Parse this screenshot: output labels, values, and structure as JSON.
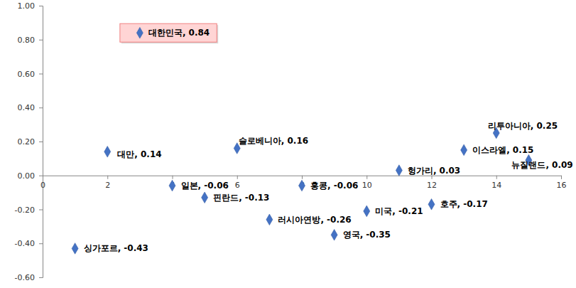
{
  "chart_data": {
    "type": "scatter",
    "x": [
      1,
      2,
      3,
      4,
      5,
      6,
      7,
      8,
      9,
      10,
      11,
      12,
      13,
      14,
      15
    ],
    "values": [
      -0.43,
      0.14,
      0.84,
      -0.06,
      -0.13,
      0.16,
      -0.26,
      -0.06,
      -0.35,
      -0.21,
      0.03,
      -0.17,
      0.15,
      0.25,
      0.09
    ],
    "value_labels": [
      "싱가포르, -0.43",
      "대만, 0.14",
      "대한민국, 0.84",
      "일본, -0.06",
      "핀란드, -0.13",
      "슬로베니아, 0.16",
      "러시아연방, -0.26",
      "홍콩, -0.06",
      "영국, -0.35",
      "미국, -0.21",
      "헝가리, 0.03",
      "호주, -0.17",
      "이스라엘, 0.15",
      "리투아니아, 0.25",
      "뉴질랜드, 0.09"
    ],
    "data_labels": true,
    "color": "#4472c4",
    "marker": "diamond",
    "xlim": [
      0,
      16
    ],
    "xticks": [
      0,
      2,
      4,
      6,
      8,
      10,
      12,
      14,
      16
    ],
    "ylim": [
      -0.6,
      1.0
    ],
    "yticks": [
      {
        "value": 1.0,
        "label": "1.00"
      },
      {
        "value": 0.8,
        "label": "0.80"
      },
      {
        "value": 0.6,
        "label": "0.60"
      },
      {
        "value": 0.4,
        "label": "0.40"
      },
      {
        "value": 0.2,
        "label": "0.20"
      },
      {
        "value": 0.0,
        "label": "0.00"
      },
      {
        "value": -0.2,
        "label": "-0.20"
      },
      {
        "value": -0.4,
        "label": "-0.40"
      },
      {
        "value": -0.6,
        "label": "-0.60"
      }
    ],
    "grid": false
  }
}
